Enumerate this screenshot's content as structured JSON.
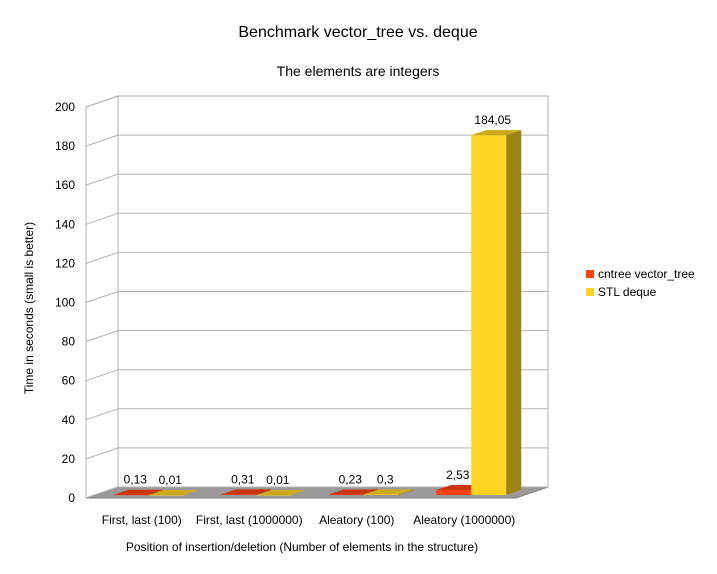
{
  "chart_data": {
    "type": "bar",
    "title": "Benchmark vector_tree vs. deque",
    "subtitle": "The elements are integers",
    "xlabel": "Position of insertion/deletion (Number of elements in the structure)",
    "ylabel": "Time in seconds (small is better)",
    "ylim": [
      0,
      200
    ],
    "yticks": [
      0,
      20,
      40,
      60,
      80,
      100,
      120,
      140,
      160,
      180,
      200
    ],
    "categories": [
      "First, last (100)",
      "First, last (1000000)",
      "Aleatory (100)",
      "Aleatory (1000000)"
    ],
    "series": [
      {
        "name": "cntree  vector_tree",
        "values": [
          0.13,
          0.31,
          0.23,
          2.53
        ],
        "labels": [
          "0,13",
          "0,31",
          "0,23",
          "2,53"
        ],
        "color": "#ff420e"
      },
      {
        "name": "STL deque",
        "values": [
          0.01,
          0.01,
          0.3,
          184.05
        ],
        "labels": [
          "0,01",
          "0,01",
          "0,3",
          "184,05"
        ],
        "color": "#ffd320"
      }
    ],
    "grid": true,
    "legend": "right",
    "style": "3d"
  }
}
